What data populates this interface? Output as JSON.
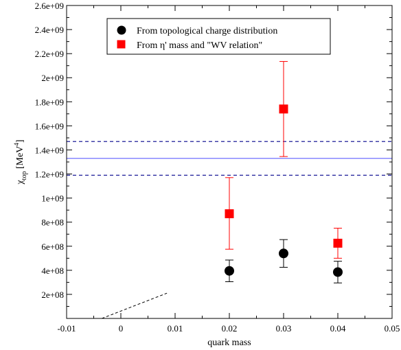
{
  "chart_data": {
    "type": "scatter",
    "title": "",
    "xlabel": "quark mass",
    "ylabel": "χ",
    "ylabel_sub": "top",
    "ylabel_unit": "[MeV",
    "ylabel_unit_sup": "4",
    "ylabel_unit_close": "]",
    "xlim": [
      -0.01,
      0.05
    ],
    "ylim": [
      0,
      2600000000
    ],
    "x_ticks": [
      -0.01,
      0,
      0.01,
      0.02,
      0.03,
      0.04,
      0.05
    ],
    "x_tick_labels": [
      "-0.01",
      "0",
      "0.01",
      "0.02",
      "0.03",
      "0.04",
      "0.05"
    ],
    "y_ticks": [
      200000000,
      400000000,
      600000000,
      800000000,
      1000000000,
      1200000000,
      1400000000,
      1600000000,
      1800000000,
      2000000000,
      2200000000,
      2400000000,
      2600000000
    ],
    "y_tick_labels": [
      "2e+08",
      "4e+08",
      "6e+08",
      "8e+08",
      "1e+09",
      "1.2e+09",
      "1.4e+09",
      "1.6e+09",
      "1.8e+09",
      "2e+09",
      "2.2e+09",
      "2.4e+09",
      "2.6e+09"
    ],
    "grid": false,
    "legend_position": "top-center",
    "series": [
      {
        "name": "From topological charge distribution",
        "marker": "circle",
        "color": "#000000",
        "points": [
          {
            "x": 0.02,
            "y": 395000000,
            "err_low": 305000000,
            "err_high": 485000000
          },
          {
            "x": 0.03,
            "y": 540000000,
            "err_low": 425000000,
            "err_high": 655000000
          },
          {
            "x": 0.04,
            "y": 385000000,
            "err_low": 295000000,
            "err_high": 475000000
          }
        ]
      },
      {
        "name": "From η' mass and \"WV relation\"",
        "marker": "square",
        "color": "#ff0000",
        "points": [
          {
            "x": 0.02,
            "y": 870000000,
            "err_low": 575000000,
            "err_high": 1170000000
          },
          {
            "x": 0.03,
            "y": 1740000000,
            "err_low": 1345000000,
            "err_high": 2135000000
          },
          {
            "x": 0.04,
            "y": 625000000,
            "err_low": 500000000,
            "err_high": 750000000
          }
        ]
      }
    ],
    "reference_lines": [
      {
        "y": 1330000000,
        "style": "solid",
        "color": "#7070ff"
      },
      {
        "y": 1470000000,
        "style": "dashed",
        "color": "#00008b"
      },
      {
        "y": 1190000000,
        "style": "dashed",
        "color": "#00008b"
      }
    ],
    "guide_line": {
      "x": [
        -0.0035,
        0.0085
      ],
      "y": [
        0,
        210000000
      ],
      "style": "dashed",
      "color": "#000000"
    }
  }
}
